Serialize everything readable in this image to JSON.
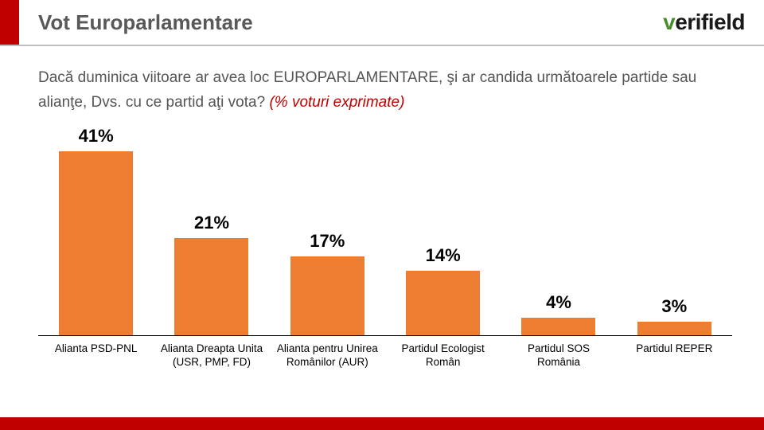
{
  "header": {
    "title": "Vot Europarlamentare",
    "accent_color": "#c00000",
    "title_color": "#595959"
  },
  "logo": {
    "v_text": "v",
    "rest_text": "erifield",
    "v_color": "#4a8e2b",
    "rest_color": "#1a1a1a"
  },
  "question": {
    "main": "Dacă duminica viitoare ar avea loc EUROPARLAMENTARE, şi ar candida următoarele partide sau alianţe, Dvs. cu ce partid aţi vota? ",
    "note": "(% voturi exprimate)",
    "note_color": "#c00000"
  },
  "chart": {
    "type": "bar",
    "ylim": [
      0,
      45
    ],
    "bar_color": "#ed7d31",
    "bar_width_pct": 64,
    "value_label_fontsize": 22,
    "value_label_weight": 700,
    "x_label_fontsize": 13.5,
    "baseline_color": "#000000",
    "background_color": "#ffffff",
    "categories": [
      "Alianta PSD-PNL",
      "Alianta Dreapta Unita (USR, PMP, FD)",
      "Alianta pentru Unirea Românilor (AUR)",
      "Partidul Ecologist Român",
      "Partidul SOS România",
      "Partidul REPER"
    ],
    "values": [
      41,
      21,
      17,
      14,
      4,
      3
    ],
    "value_labels": [
      "41%",
      "21%",
      "17%",
      "14%",
      "4%",
      "3%"
    ]
  },
  "footer": {
    "bar_color": "#c00000"
  }
}
